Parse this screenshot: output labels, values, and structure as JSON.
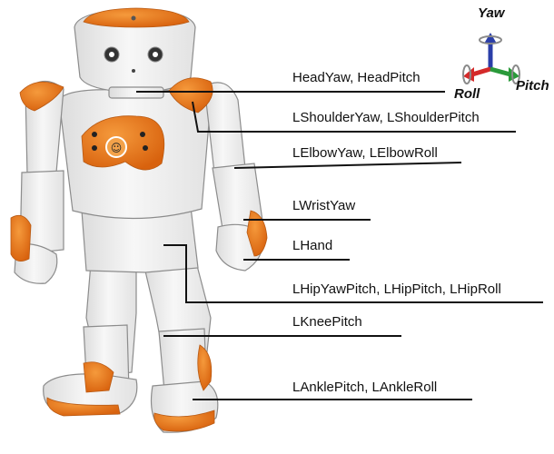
{
  "axes": {
    "yaw": "Yaw",
    "roll": "Roll",
    "pitch": "Pitch",
    "colors": {
      "yaw": "#2a3ea8",
      "roll": "#d42a2a",
      "pitch": "#2a9a3a",
      "arrow": "#8a8a8a"
    }
  },
  "joints": [
    {
      "id": "head",
      "label": "HeadYaw, HeadPitch"
    },
    {
      "id": "shoulder",
      "label": "LShoulderYaw, LShoulderPitch"
    },
    {
      "id": "elbow",
      "label": "LElbowYaw, LElbowRoll"
    },
    {
      "id": "wrist",
      "label": "LWristYaw"
    },
    {
      "id": "hand",
      "label": "LHand"
    },
    {
      "id": "hip",
      "label": "LHipYawPitch, LHipPitch, LHipRoll"
    },
    {
      "id": "knee",
      "label": "LKneePitch"
    },
    {
      "id": "ankle",
      "label": "LAnklePitch, LAnkleRoll"
    }
  ],
  "colors": {
    "orange": "#e8781e",
    "body": "#f2f2f2",
    "outline": "#8c8c8c",
    "leader": "#111111"
  }
}
